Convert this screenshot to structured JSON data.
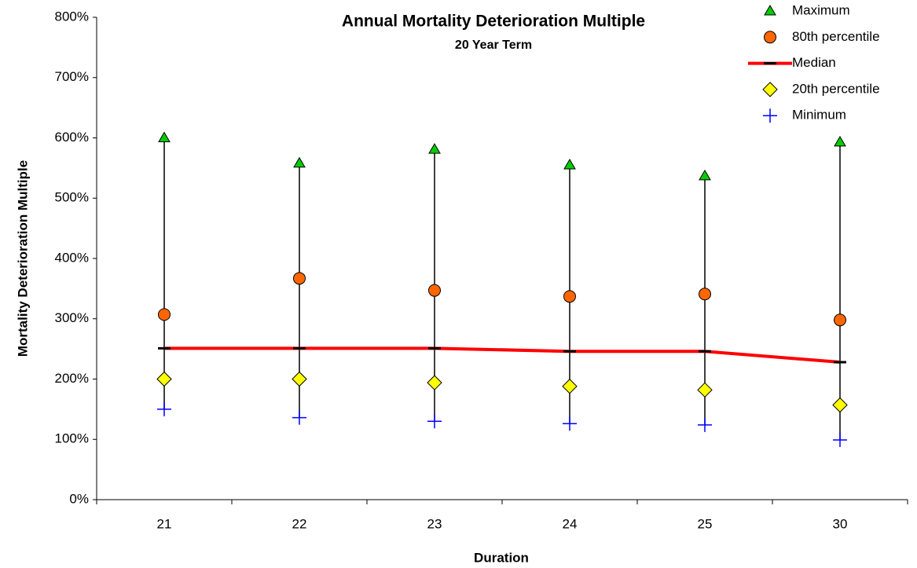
{
  "chart_data": {
    "type": "high-low",
    "title": "Annual Mortality Deterioration Multiple",
    "subtitle": "20 Year Term",
    "x_label": "Duration",
    "y_label": "Mortality Deterioration Multiple",
    "categories": [
      "21",
      "22",
      "23",
      "24",
      "25",
      "30"
    ],
    "ylim": [
      0,
      800
    ],
    "yticks": [
      {
        "value": 0,
        "label": "0%"
      },
      {
        "value": 100,
        "label": "100%"
      },
      {
        "value": 200,
        "label": "200%"
      },
      {
        "value": 300,
        "label": "300%"
      },
      {
        "value": 400,
        "label": "400%"
      },
      {
        "value": 500,
        "label": "500%"
      },
      {
        "value": 600,
        "label": "600%"
      },
      {
        "value": 700,
        "label": "700%"
      },
      {
        "value": 800,
        "label": "800%"
      }
    ],
    "legend": "top-right",
    "series": [
      {
        "name": "Maximum",
        "color": "#00cc00",
        "marker": "triangle",
        "values": [
          600,
          558,
          581,
          555,
          537,
          593
        ]
      },
      {
        "name": "80th percentile",
        "color": "#ff6600",
        "marker": "circle",
        "values": [
          307,
          367,
          347,
          337,
          341,
          298
        ]
      },
      {
        "name": "Median",
        "color": "#ff0000",
        "marker": "dash",
        "line": true,
        "values": [
          251,
          251,
          251,
          246,
          246,
          228
        ]
      },
      {
        "name": "20th percentile",
        "color": "#ffff00",
        "marker": "diamond",
        "values": [
          200,
          200,
          194,
          188,
          182,
          157
        ]
      },
      {
        "name": "Minimum",
        "color": "#0000ff",
        "marker": "plus",
        "values": [
          150,
          136,
          130,
          126,
          124,
          99
        ]
      }
    ]
  }
}
